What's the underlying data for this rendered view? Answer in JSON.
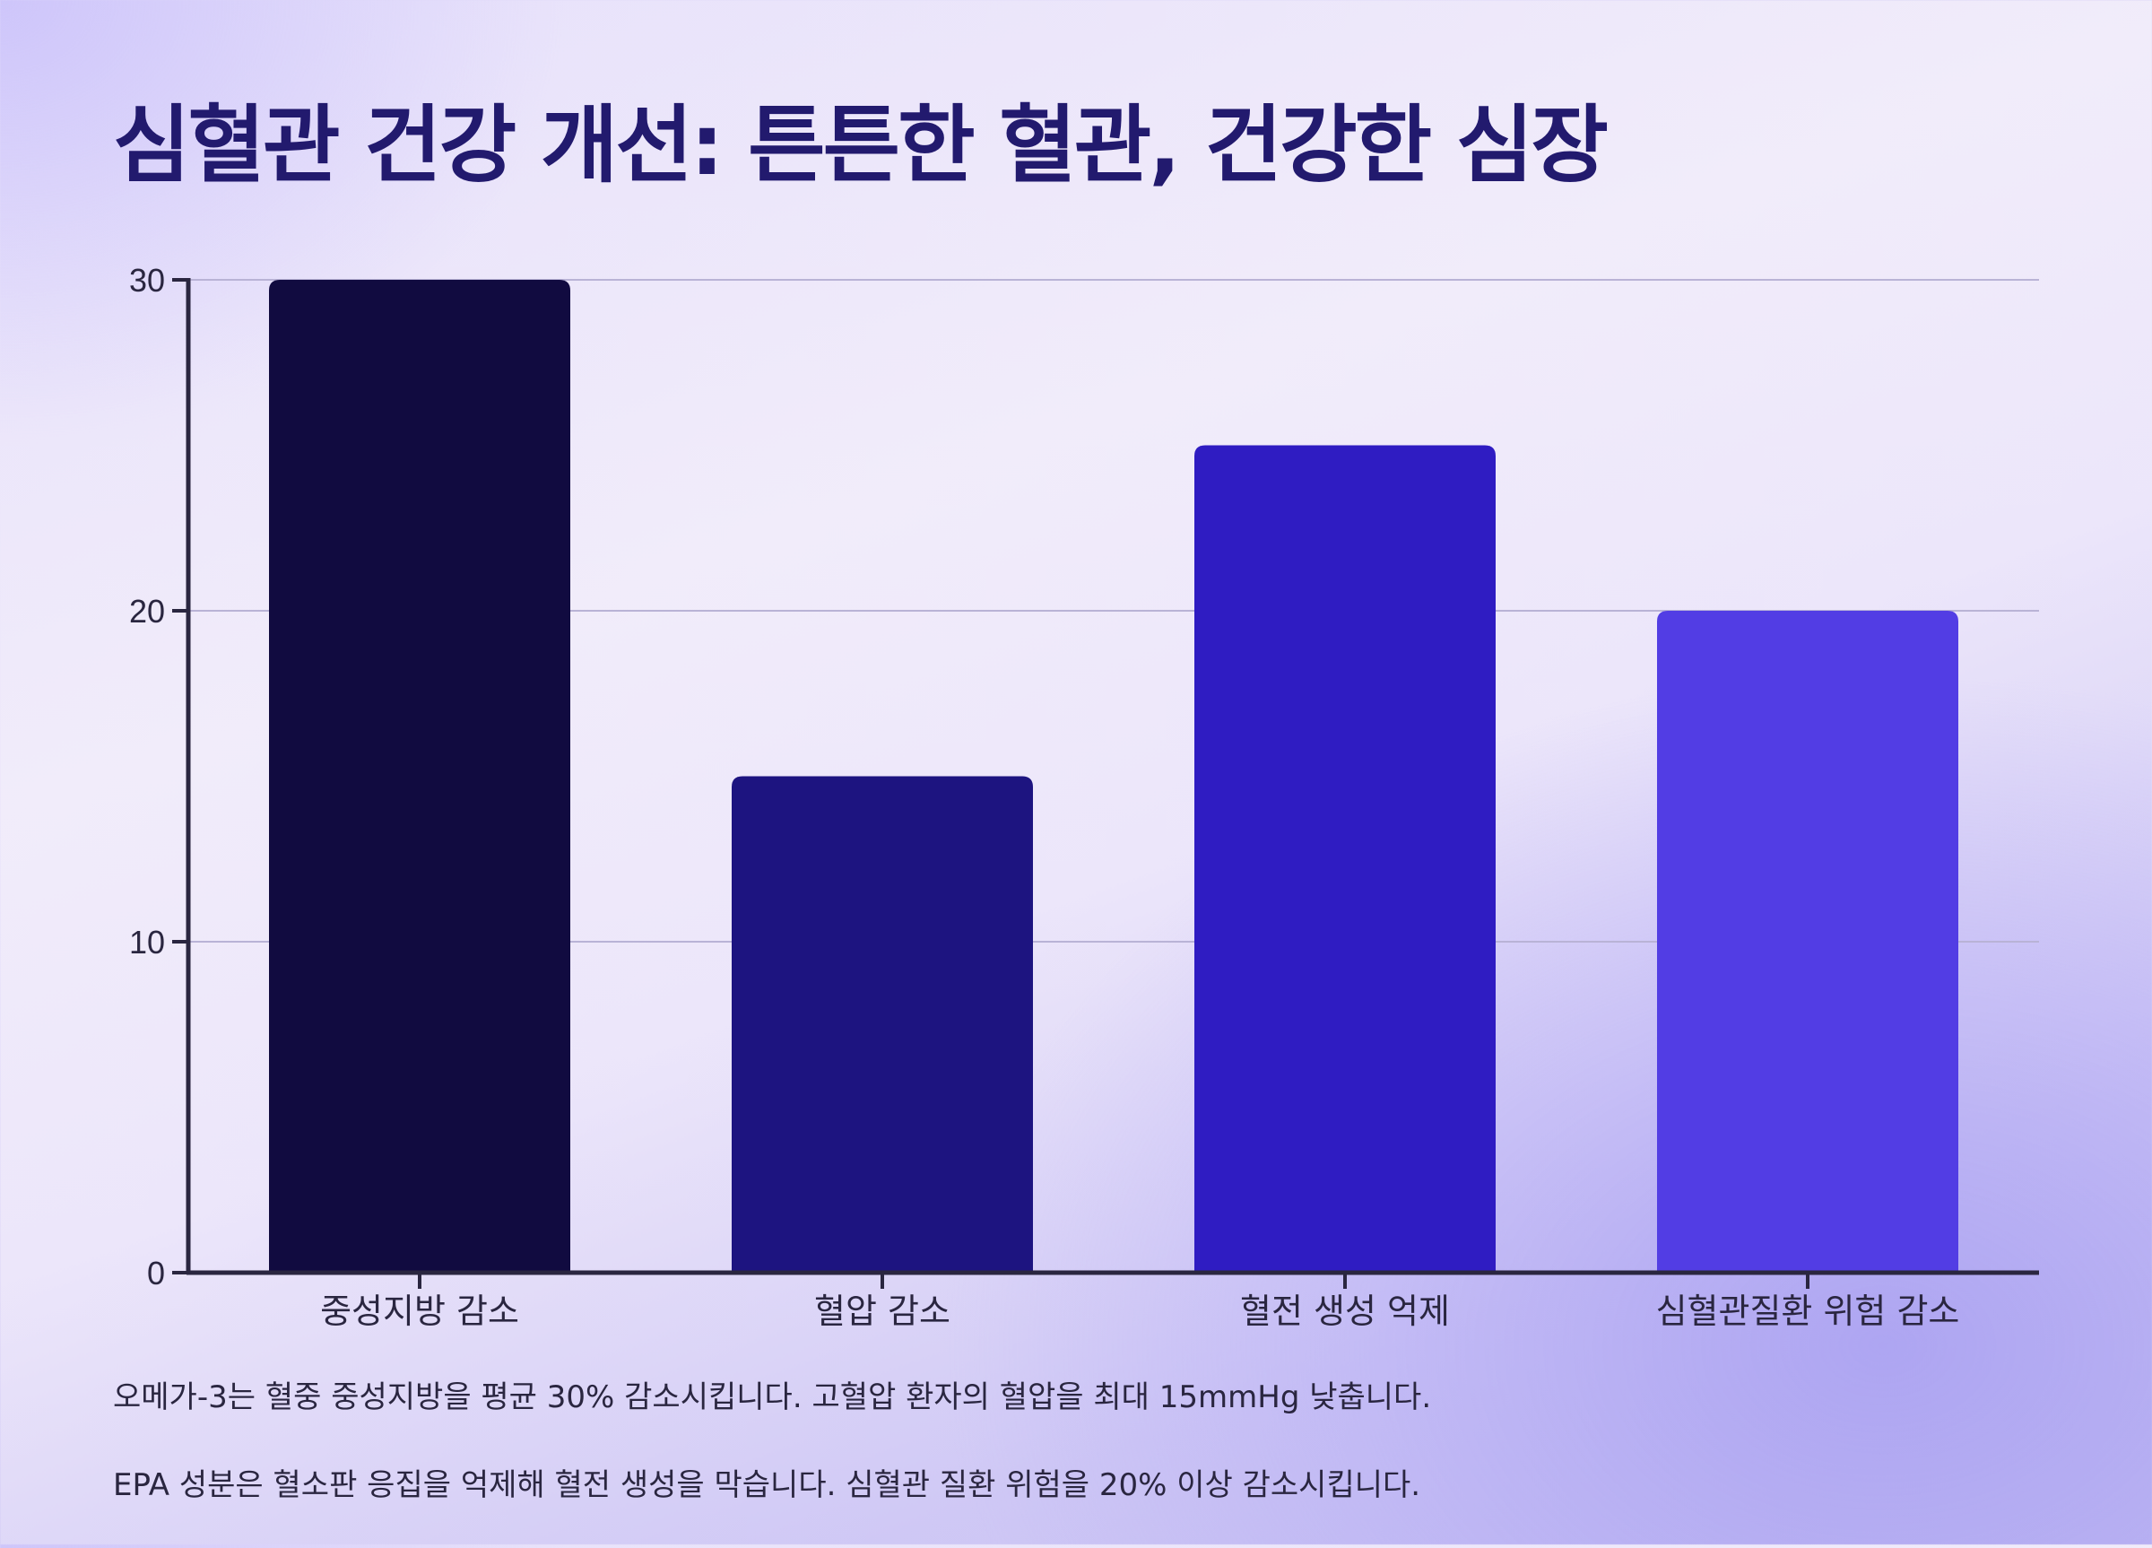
{
  "title": "심혈관 건강 개선: 튼튼한 혈관, 건강한 심장",
  "chart_data": {
    "type": "bar",
    "categories": [
      "중성지방 감소",
      "혈압 감소",
      "혈전 생성 억제",
      "심혈관질환 위험 감소"
    ],
    "values": [
      30,
      15,
      25,
      20
    ],
    "colors": [
      "#110b40",
      "#1d1480",
      "#2f1cc2",
      "#523de4"
    ],
    "title": "심혈관 건강 개선: 튼튼한 혈관, 건강한 심장",
    "xlabel": "",
    "ylabel": "",
    "ylim": [
      0,
      30
    ],
    "yticks": [
      0,
      10,
      20,
      30
    ],
    "grid": true,
    "legend": "none"
  },
  "notes": [
    "오메가-3는 혈중 중성지방을 평균 30% 감소시킵니다. 고혈압 환자의 혈압을 최대 15mmHg 낮춥니다.",
    "EPA 성분은 혈소판 응집을 억제해 혈전 생성을 막습니다. 심혈관 질환 위험을 20% 이상 감소시킵니다."
  ]
}
